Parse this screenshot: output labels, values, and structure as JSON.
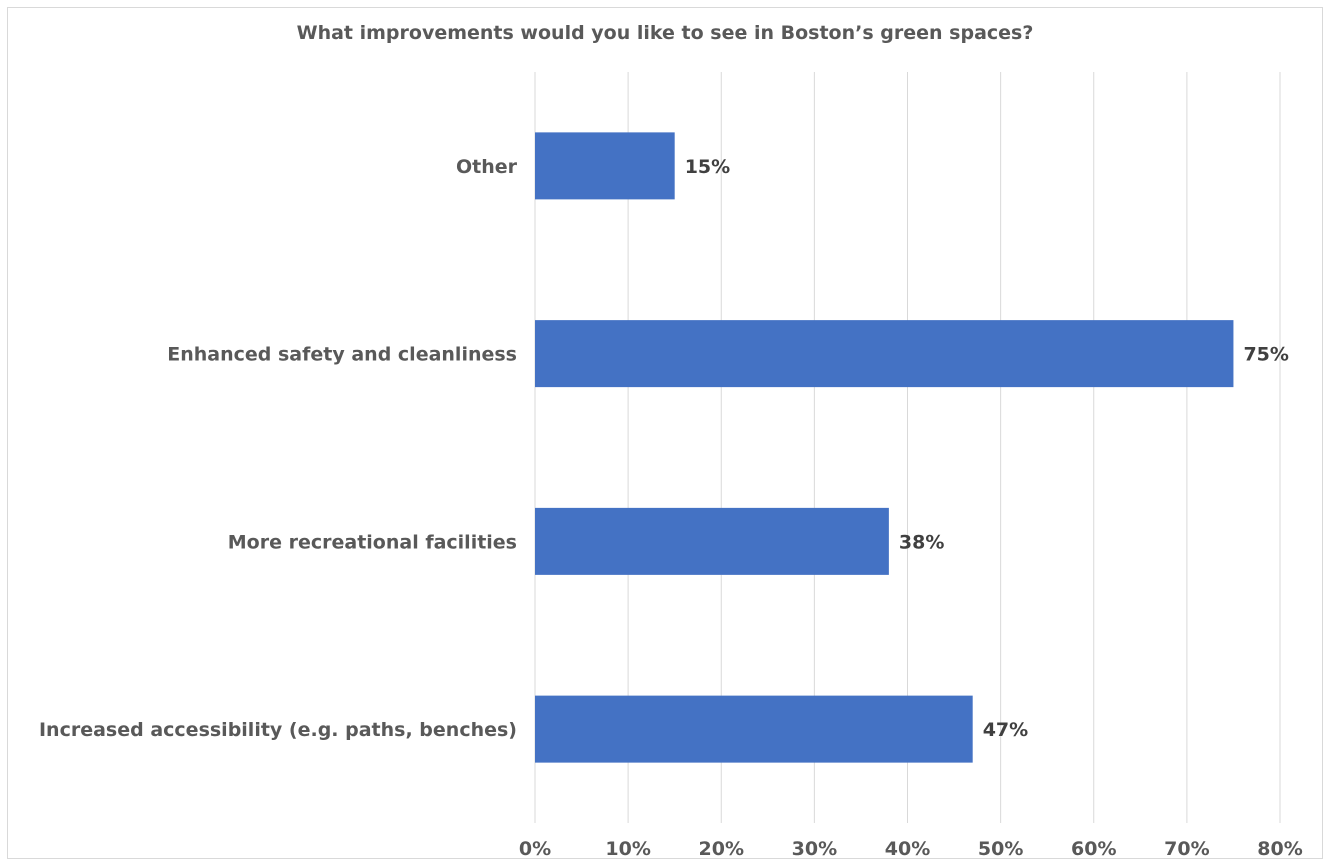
{
  "chart_data": {
    "type": "bar",
    "orientation": "horizontal",
    "title": "What improvements would you like to see in Boston’s green spaces?",
    "categories": [
      "Other",
      "Enhanced safety and cleanliness",
      "More recreational facilities",
      "Increased accessibility (e.g. paths, benches)"
    ],
    "values": [
      15,
      75,
      38,
      47
    ],
    "value_labels": [
      "15%",
      "75%",
      "38%",
      "47%"
    ],
    "xlim": [
      0,
      80
    ],
    "x_ticks": [
      0,
      10,
      20,
      30,
      40,
      50,
      60,
      70,
      80
    ],
    "x_tick_labels": [
      "0%",
      "10%",
      "20%",
      "30%",
      "40%",
      "50%",
      "60%",
      "70%",
      "80%"
    ],
    "grid": "vertical",
    "legend": "none",
    "bar_color": "#4472c4"
  }
}
